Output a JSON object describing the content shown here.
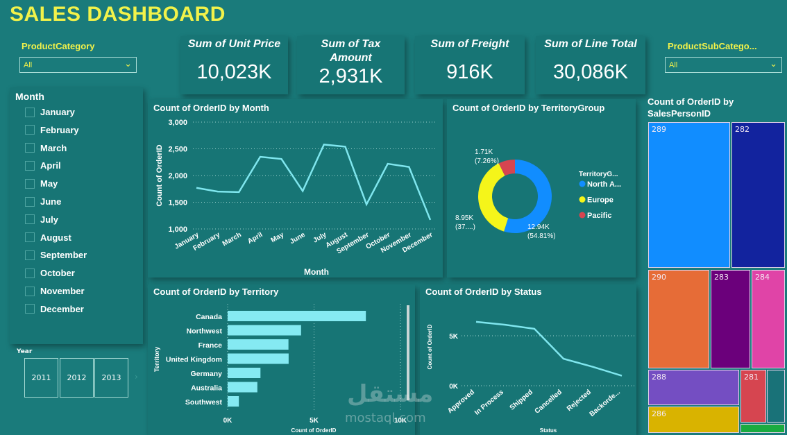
{
  "header": {
    "title": "SALES DASHBOARD"
  },
  "filters": {
    "product_category": {
      "label": "ProductCategory",
      "value": "All"
    },
    "product_subcategory": {
      "label": "ProductSubCatego...",
      "value": "All"
    },
    "month": {
      "label": "Month",
      "items": [
        "January",
        "February",
        "March",
        "April",
        "May",
        "June",
        "July",
        "August",
        "September",
        "October",
        "November",
        "December"
      ]
    },
    "year": {
      "label": "Year",
      "items": [
        "2011",
        "2012",
        "2013"
      ]
    }
  },
  "kpis": [
    {
      "title": "Sum of Unit Price",
      "value": "10,023K"
    },
    {
      "title": "Sum of Tax Amount",
      "value": "2,931K"
    },
    {
      "title": "Sum of Freight",
      "value": "916K"
    },
    {
      "title": "Sum of Line Total",
      "value": "30,086K"
    }
  ],
  "watermark": {
    "arabic": "مستقل",
    "latin": "mostaql.com"
  },
  "colors": {
    "background": "#1a7b7b",
    "title": "#f2f24a",
    "line": "#7fe6ee",
    "bar": "#85eaf2"
  },
  "chart_data": [
    {
      "type": "line",
      "title": "Count of OrderID by Month",
      "xlabel": "Month",
      "ylabel": "Count of OrderID",
      "categories": [
        "January",
        "February",
        "March",
        "April",
        "May",
        "June",
        "July",
        "August",
        "September",
        "October",
        "November",
        "December"
      ],
      "values": [
        1770,
        1700,
        1690,
        2350,
        2310,
        1710,
        2580,
        2540,
        1460,
        2220,
        2160,
        1170
      ],
      "ylim": [
        1000,
        3000
      ],
      "yticks": [
        "1,000",
        "1,500",
        "2,000",
        "2,500",
        "3,000"
      ],
      "grid": true
    },
    {
      "type": "pie",
      "title": "Count of OrderID by TerritoryGroup",
      "legend_title": "TerritoryG...",
      "legend": "right",
      "slices": [
        {
          "name": "North A...",
          "value": 12.94,
          "label": "12.94K",
          "pct": "(54.81%)",
          "color": "#118dff"
        },
        {
          "name": "Europe",
          "value": 8.95,
          "label": "8.95K",
          "pct": "(37....)",
          "color": "#f5f51a"
        },
        {
          "name": "Pacific",
          "value": 1.71,
          "label": "1.71K",
          "pct": "(7.26%)",
          "color": "#d64550"
        }
      ]
    },
    {
      "type": "bar",
      "title": "Count of OrderID by Territory",
      "xlabel": "Count of OrderID",
      "ylabel": "Territory",
      "categories": [
        "Canada",
        "Northwest",
        "France",
        "United Kingdom",
        "Germany",
        "Australia",
        "Southwest"
      ],
      "values": [
        8000,
        4250,
        3520,
        3530,
        1900,
        1720,
        650
      ],
      "xlim": [
        0,
        10000
      ],
      "xticks": [
        "0K",
        "5K",
        "10K"
      ],
      "grid": true
    },
    {
      "type": "line",
      "title": "Count of OrderID by Status",
      "xlabel": "Status",
      "ylabel": "Count of OrderID",
      "categories": [
        "Approved",
        "In Process",
        "Shipped",
        "Cancelled",
        "Rejected",
        "Backorde..."
      ],
      "values": [
        6400,
        6100,
        5700,
        2700,
        1900,
        1000
      ],
      "ylim": [
        0,
        7000
      ],
      "yticks": [
        "0K",
        "5K"
      ],
      "grid": true
    },
    {
      "type": "treemap",
      "title": "Count of OrderID by SalesPersonID",
      "items": [
        {
          "label": "289",
          "color": "#118dff"
        },
        {
          "label": "282",
          "color": "#12239e"
        },
        {
          "label": "290",
          "color": "#e66c37"
        },
        {
          "label": "283",
          "color": "#6b007b"
        },
        {
          "label": "284",
          "color": "#e044a7"
        },
        {
          "label": "288",
          "color": "#744ec2"
        },
        {
          "label": "286",
          "color": "#d9b300"
        },
        {
          "label": "281",
          "color": "#d64550"
        },
        {
          "label": "",
          "color": "#197278"
        },
        {
          "label": "",
          "color": "#1aab40"
        }
      ]
    }
  ]
}
